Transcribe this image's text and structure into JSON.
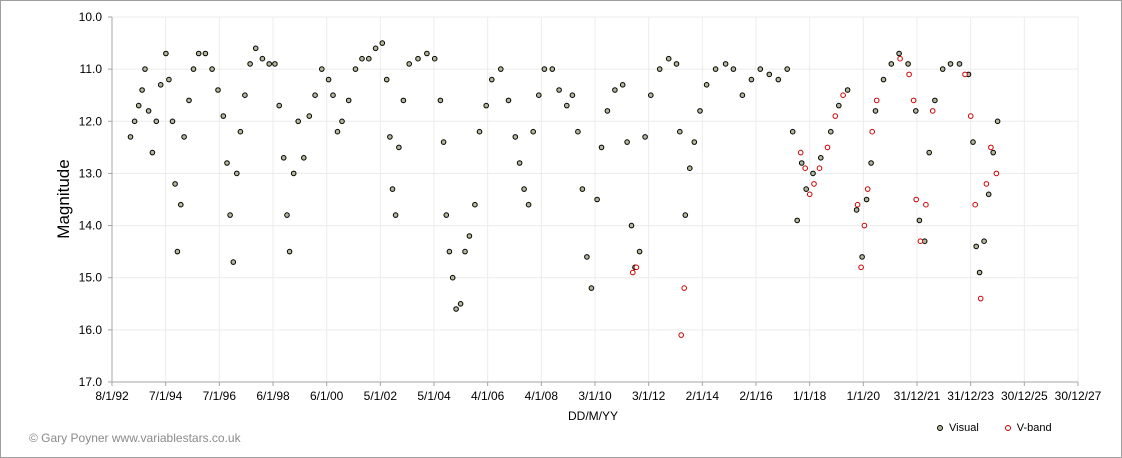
{
  "chart_data": {
    "type": "scatter",
    "xlabel": "DD/M/YY",
    "ylabel": "Magnitude",
    "ylim": [
      10.0,
      17.0
    ],
    "y_inverted": true,
    "y_ticks": [
      "10.0",
      "11.0",
      "12.0",
      "13.0",
      "14.0",
      "15.0",
      "16.0",
      "17.0"
    ],
    "x_ticks": [
      "8/1/92",
      "7/1/94",
      "7/1/96",
      "6/1/98",
      "6/1/00",
      "5/1/02",
      "5/1/04",
      "4/1/06",
      "4/1/08",
      "3/1/10",
      "3/1/12",
      "2/1/14",
      "2/1/16",
      "1/1/18",
      "1/1/20",
      "31/12/21",
      "31/12/23",
      "30/12/25",
      "30/12/27"
    ],
    "grid": true,
    "legend_position": "bottom-right",
    "series": [
      {
        "name": "Visual",
        "marker_fill": "#b5b89a",
        "marker_edge": "#000000",
        "points": [
          [
            "1992-09-15",
            12.3
          ],
          [
            "1992-11-10",
            12.0
          ],
          [
            "1993-01-05",
            11.7
          ],
          [
            "1993-02-20",
            11.4
          ],
          [
            "1993-04-01",
            11.0
          ],
          [
            "1993-05-20",
            11.8
          ],
          [
            "1993-07-10",
            12.6
          ],
          [
            "1993-09-01",
            12.0
          ],
          [
            "1993-11-01",
            11.3
          ],
          [
            "1994-01-10",
            10.7
          ],
          [
            "1994-02-20",
            11.2
          ],
          [
            "1994-04-10",
            12.0
          ],
          [
            "1994-05-15",
            13.2
          ],
          [
            "1994-06-15",
            14.5
          ],
          [
            "1994-08-01",
            13.6
          ],
          [
            "1994-09-15",
            12.3
          ],
          [
            "1994-11-20",
            11.6
          ],
          [
            "1995-01-20",
            11.0
          ],
          [
            "1995-04-01",
            10.7
          ],
          [
            "1995-07-01",
            10.7
          ],
          [
            "1995-10-01",
            11.0
          ],
          [
            "1995-12-20",
            11.4
          ],
          [
            "1996-03-01",
            11.9
          ],
          [
            "1996-04-20",
            12.8
          ],
          [
            "1996-06-01",
            13.8
          ],
          [
            "1996-07-15",
            14.7
          ],
          [
            "1996-09-01",
            13.0
          ],
          [
            "1996-10-20",
            12.2
          ],
          [
            "1996-12-20",
            11.5
          ],
          [
            "1997-03-01",
            10.9
          ],
          [
            "1997-05-15",
            10.6
          ],
          [
            "1997-08-15",
            10.8
          ],
          [
            "1997-11-15",
            10.9
          ],
          [
            "1998-02-01",
            10.9
          ],
          [
            "1998-04-01",
            11.7
          ],
          [
            "1998-06-01",
            12.7
          ],
          [
            "1998-07-15",
            13.8
          ],
          [
            "1998-08-20",
            14.5
          ],
          [
            "1998-10-15",
            13.0
          ],
          [
            "1998-12-15",
            12.0
          ],
          [
            "1999-03-01",
            12.7
          ],
          [
            "1999-05-15",
            11.9
          ],
          [
            "1999-08-01",
            11.5
          ],
          [
            "1999-11-01",
            11.0
          ],
          [
            "2000-02-01",
            11.2
          ],
          [
            "2000-04-01",
            11.5
          ],
          [
            "2000-06-01",
            12.2
          ],
          [
            "2000-08-01",
            12.0
          ],
          [
            "2000-11-01",
            11.6
          ],
          [
            "2001-02-01",
            11.0
          ],
          [
            "2001-05-01",
            10.8
          ],
          [
            "2001-08-01",
            10.8
          ],
          [
            "2001-11-01",
            10.6
          ],
          [
            "2002-02-01",
            10.5
          ],
          [
            "2002-04-01",
            11.2
          ],
          [
            "2002-05-15",
            12.3
          ],
          [
            "2002-06-20",
            13.3
          ],
          [
            "2002-08-01",
            13.8
          ],
          [
            "2002-09-15",
            12.5
          ],
          [
            "2002-11-15",
            11.6
          ],
          [
            "2003-02-01",
            10.9
          ],
          [
            "2003-06-01",
            10.8
          ],
          [
            "2003-10-01",
            10.7
          ],
          [
            "2004-01-15",
            10.8
          ],
          [
            "2004-04-01",
            11.6
          ],
          [
            "2004-05-15",
            12.4
          ],
          [
            "2004-06-20",
            13.8
          ],
          [
            "2004-08-01",
            14.5
          ],
          [
            "2004-09-15",
            15.0
          ],
          [
            "2004-11-01",
            15.6
          ],
          [
            "2005-01-01",
            15.5
          ],
          [
            "2005-03-01",
            14.5
          ],
          [
            "2005-05-01",
            14.2
          ],
          [
            "2005-07-15",
            13.6
          ],
          [
            "2005-09-15",
            12.2
          ],
          [
            "2005-12-15",
            11.7
          ],
          [
            "2006-03-01",
            11.2
          ],
          [
            "2006-07-01",
            11.0
          ],
          [
            "2006-10-15",
            11.6
          ],
          [
            "2007-01-15",
            12.3
          ],
          [
            "2007-03-15",
            12.8
          ],
          [
            "2007-05-15",
            13.3
          ],
          [
            "2007-07-15",
            13.6
          ],
          [
            "2007-09-15",
            12.2
          ],
          [
            "2007-12-01",
            11.5
          ],
          [
            "2008-02-15",
            11.0
          ],
          [
            "2008-06-01",
            11.0
          ],
          [
            "2008-09-01",
            11.4
          ],
          [
            "2008-12-15",
            11.7
          ],
          [
            "2009-03-01",
            11.5
          ],
          [
            "2009-05-15",
            12.2
          ],
          [
            "2009-07-15",
            13.3
          ],
          [
            "2009-09-15",
            14.6
          ],
          [
            "2009-11-15",
            15.2
          ],
          [
            "2010-02-01",
            13.5
          ],
          [
            "2010-04-01",
            12.5
          ],
          [
            "2010-06-20",
            11.8
          ],
          [
            "2010-10-01",
            11.4
          ],
          [
            "2011-01-15",
            11.3
          ],
          [
            "2011-03-15",
            12.4
          ],
          [
            "2011-05-15",
            14.0
          ],
          [
            "2011-07-01",
            14.8
          ],
          [
            "2011-09-01",
            14.5
          ],
          [
            "2011-11-15",
            12.3
          ],
          [
            "2012-02-01",
            11.5
          ],
          [
            "2012-06-01",
            11.0
          ],
          [
            "2012-10-01",
            10.8
          ],
          [
            "2013-01-15",
            10.9
          ],
          [
            "2013-03-01",
            12.2
          ],
          [
            "2013-05-15",
            13.8
          ],
          [
            "2013-07-15",
            12.9
          ],
          [
            "2013-09-15",
            12.4
          ],
          [
            "2013-12-01",
            11.8
          ],
          [
            "2014-03-01",
            11.3
          ],
          [
            "2014-07-01",
            11.0
          ],
          [
            "2014-11-15",
            10.9
          ],
          [
            "2015-03-01",
            11.0
          ],
          [
            "2015-07-01",
            11.5
          ],
          [
            "2015-11-01",
            11.2
          ],
          [
            "2016-03-01",
            11.0
          ],
          [
            "2016-07-01",
            11.1
          ],
          [
            "2016-11-01",
            11.2
          ],
          [
            "2017-03-01",
            11.0
          ],
          [
            "2017-05-15",
            12.2
          ],
          [
            "2017-07-15",
            13.9
          ],
          [
            "2017-09-15",
            12.8
          ],
          [
            "2017-11-15",
            13.3
          ],
          [
            "2018-02-15",
            13.0
          ],
          [
            "2018-06-01",
            12.7
          ],
          [
            "2018-10-15",
            12.2
          ],
          [
            "2019-02-01",
            11.7
          ],
          [
            "2019-06-01",
            11.4
          ],
          [
            "2019-10-01",
            13.7
          ],
          [
            "2019-12-15",
            14.6
          ],
          [
            "2020-02-15",
            13.5
          ],
          [
            "2020-04-15",
            12.8
          ],
          [
            "2020-06-15",
            11.8
          ],
          [
            "2020-10-01",
            11.2
          ],
          [
            "2021-01-15",
            10.9
          ],
          [
            "2021-05-01",
            10.7
          ],
          [
            "2021-09-01",
            10.9
          ],
          [
            "2021-12-15",
            11.8
          ],
          [
            "2022-02-01",
            13.9
          ],
          [
            "2022-04-15",
            14.3
          ],
          [
            "2022-06-15",
            12.6
          ],
          [
            "2022-09-01",
            11.6
          ],
          [
            "2022-12-15",
            11.0
          ],
          [
            "2023-04-01",
            10.9
          ],
          [
            "2023-08-01",
            10.9
          ],
          [
            "2023-12-01",
            11.1
          ],
          [
            "2024-02-01",
            12.4
          ],
          [
            "2024-03-15",
            14.4
          ],
          [
            "2024-05-01",
            14.9
          ],
          [
            "2024-07-01",
            14.3
          ],
          [
            "2024-09-01",
            13.4
          ],
          [
            "2024-11-01",
            12.6
          ],
          [
            "2025-01-01",
            12.0
          ]
        ]
      },
      {
        "name": "V-band",
        "marker_fill": "#ffffff",
        "marker_edge": "#cc0000",
        "points": [
          [
            "2011-06-01",
            14.9
          ],
          [
            "2011-07-20",
            14.8
          ],
          [
            "2013-03-20",
            16.1
          ],
          [
            "2013-05-01",
            15.2
          ],
          [
            "2017-09-01",
            12.6
          ],
          [
            "2017-11-01",
            12.9
          ],
          [
            "2018-01-01",
            13.4
          ],
          [
            "2018-03-01",
            13.2
          ],
          [
            "2018-05-15",
            12.9
          ],
          [
            "2018-09-01",
            12.5
          ],
          [
            "2018-12-15",
            11.9
          ],
          [
            "2019-04-01",
            11.5
          ],
          [
            "2019-10-15",
            13.6
          ],
          [
            "2019-12-01",
            14.8
          ],
          [
            "2020-01-15",
            14.0
          ],
          [
            "2020-03-01",
            13.3
          ],
          [
            "2020-05-01",
            12.2
          ],
          [
            "2020-07-01",
            11.6
          ],
          [
            "2021-05-15",
            10.8
          ],
          [
            "2021-09-15",
            11.1
          ],
          [
            "2021-11-15",
            11.6
          ],
          [
            "2021-12-20",
            13.5
          ],
          [
            "2022-02-15",
            14.3
          ],
          [
            "2022-05-01",
            13.6
          ],
          [
            "2022-08-01",
            11.8
          ],
          [
            "2023-10-15",
            11.1
          ],
          [
            "2024-01-01",
            11.9
          ],
          [
            "2024-03-01",
            13.6
          ],
          [
            "2024-05-15",
            15.4
          ],
          [
            "2024-08-01",
            13.2
          ],
          [
            "2024-10-01",
            12.5
          ],
          [
            "2024-12-15",
            13.0
          ]
        ]
      }
    ]
  },
  "legend": {
    "visual_label": "Visual",
    "vband_label": "V-band"
  },
  "credit": "© Gary Poyner www.variablestars.co.uk",
  "colors": {
    "grid": "#ececec",
    "axis": "#a6a6a6",
    "visual_fill": "#b5b89a",
    "vband_edge": "#cc0000"
  }
}
